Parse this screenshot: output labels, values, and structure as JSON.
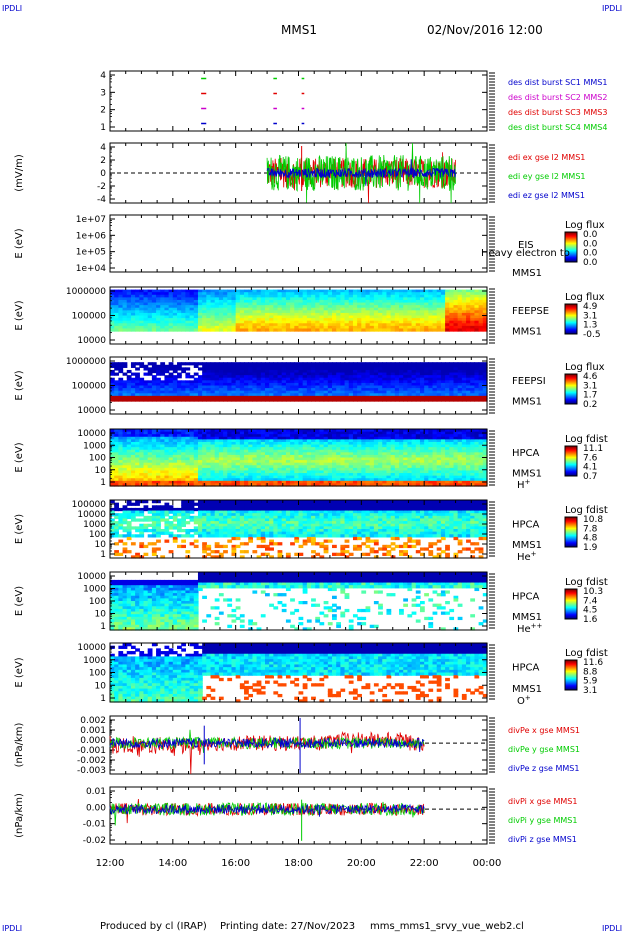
{
  "header": {
    "corner_left_top": "IPDLI",
    "corner_right_top": "IPDLI",
    "corner_left_bottom": "IPDLI",
    "corner_right_bottom": "IPDLI",
    "mission": "MMS1",
    "datetime": "02/Nov/2016 12:00"
  },
  "footer": {
    "produced_by": "Produced by cl (IRAP)",
    "printing_date": "Printing date: 27/Nov/2023",
    "file_name": "mms_mms1_srvy_vue_web2.cl"
  },
  "colors": {
    "red": "#e00000",
    "green": "#00cc00",
    "blue": "#0000cc",
    "magenta": "#cc00cc"
  },
  "chart_data": [
    {
      "type": "line",
      "panel": "burst",
      "x_ticks": [
        "12:00",
        "14:00",
        "16:00",
        "18:00",
        "20:00",
        "22:00",
        "00:00"
      ],
      "y_ticks": [
        "4",
        "3",
        "2",
        "1"
      ],
      "ylim": [
        0.5,
        4.5
      ],
      "series": [
        {
          "name": "des dist burst SC1 MMS1",
          "color": "#0000cc",
          "level": 1,
          "segments": [
            [
              14.9,
              15.0
            ],
            [
              17.2,
              17.25
            ],
            [
              18.1,
              18.12
            ]
          ]
        },
        {
          "name": "des dist burst SC2 MMS2",
          "color": "#cc00cc",
          "level": 2,
          "segments": [
            [
              14.9,
              15.0
            ],
            [
              17.2,
              17.25
            ],
            [
              18.1,
              18.12
            ]
          ]
        },
        {
          "name": "des dist burst SC3 MMS3",
          "color": "#e00000",
          "level": 3,
          "segments": [
            [
              14.9,
              15.0
            ],
            [
              17.2,
              17.25
            ],
            [
              18.1,
              18.12
            ]
          ]
        },
        {
          "name": "des dist burst SC4 MMS4",
          "color": "#00cc00",
          "level": 4,
          "segments": [
            [
              14.9,
              15.0
            ],
            [
              17.2,
              17.25
            ],
            [
              18.1,
              18.12
            ]
          ]
        }
      ]
    },
    {
      "type": "line",
      "panel": "electric_field",
      "ylabel": "(mV/m)",
      "y_ticks": [
        "4",
        "2",
        "0",
        "-2",
        "-4"
      ],
      "ylim": [
        -5,
        5
      ],
      "x_range_data": [
        17.0,
        23.0
      ],
      "series": [
        {
          "name": "edi ex gse l2 MMS1",
          "color": "#e00000",
          "amplitude": 2.5
        },
        {
          "name": "edi ey gse l2 MMS1",
          "color": "#00cc00",
          "amplitude": 3.0
        },
        {
          "name": "edi ez gse l2 MMS1",
          "color": "#0000cc",
          "amplitude": 0.8
        }
      ]
    },
    {
      "type": "heatmap",
      "panel": "EIS",
      "ylabel": "E (eV)",
      "y_ticks": [
        "1e+07",
        "1e+06",
        "1e+05",
        "1e+04"
      ],
      "labels": [
        "EIS",
        "MMS1"
      ],
      "overlay_text": "Heavy electron to",
      "colorbar_title": "Log flux",
      "colorbar_ticks": [
        "0.0",
        "0.0",
        "0.0",
        "0.0"
      ]
    },
    {
      "type": "heatmap",
      "panel": "FEEPSE",
      "ylabel": "E (eV)",
      "y_ticks": [
        "1000000",
        "100000",
        "10000"
      ],
      "labels": [
        "FEEPSE",
        "MMS1"
      ],
      "colorbar_title": "Log flux",
      "colorbar_ticks": [
        "4.9",
        "3.1",
        "1.3",
        "-0.5"
      ]
    },
    {
      "type": "heatmap",
      "panel": "FEEPSI",
      "ylabel": "E (eV)",
      "y_ticks": [
        "1000000",
        "100000",
        "10000"
      ],
      "labels": [
        "FEEPSI",
        "MMS1"
      ],
      "colorbar_title": "Log flux",
      "colorbar_ticks": [
        "4.6",
        "3.1",
        "1.7",
        "0.2"
      ]
    },
    {
      "type": "heatmap",
      "panel": "HPCA H+",
      "ylabel": "E (eV)",
      "y_ticks": [
        "10000",
        "1000",
        "100",
        "10",
        "1"
      ],
      "labels": [
        "HPCA",
        "MMS1"
      ],
      "species": "H",
      "species_charge": "+",
      "colorbar_title": "Log fdist",
      "colorbar_ticks": [
        "11.1",
        "7.6",
        "4.1",
        "0.7"
      ]
    },
    {
      "type": "heatmap",
      "panel": "HPCA He+",
      "ylabel": "E (eV)",
      "y_ticks": [
        "100000",
        "10000",
        "1000",
        "100",
        "10",
        "1"
      ],
      "labels": [
        "HPCA",
        "MMS1"
      ],
      "species": "He",
      "species_charge": "+",
      "colorbar_title": "Log fdist",
      "colorbar_ticks": [
        "10.8",
        "7.8",
        "4.8",
        "1.9"
      ]
    },
    {
      "type": "heatmap",
      "panel": "HPCA He++",
      "ylabel": "E (eV)",
      "y_ticks": [
        "10000",
        "1000",
        "100",
        "10",
        "1"
      ],
      "labels": [
        "HPCA",
        "MMS1"
      ],
      "species": "He",
      "species_charge": "++",
      "colorbar_title": "Log fdist",
      "colorbar_ticks": [
        "10.3",
        "7.4",
        "4.5",
        "1.6"
      ]
    },
    {
      "type": "heatmap",
      "panel": "HPCA O+",
      "ylabel": "E (eV)",
      "y_ticks": [
        "10000",
        "1000",
        "100",
        "10",
        "1"
      ],
      "labels": [
        "HPCA",
        "MMS1"
      ],
      "species": "O",
      "species_charge": "+",
      "colorbar_title": "Log fdist",
      "colorbar_ticks": [
        "11.6",
        "8.8",
        "5.9",
        "3.1"
      ]
    },
    {
      "type": "line",
      "panel": "divPe",
      "ylabel": "(nPa/km)",
      "y_ticks": [
        "0.002",
        "0.001",
        "0.000",
        "-0.001",
        "-0.002",
        "-0.003"
      ],
      "ylim": [
        -0.0032,
        0.0028
      ],
      "x_range_data": [
        12.0,
        22.0
      ],
      "series": [
        {
          "name": "divPe x gse MMS1",
          "color": "#e00000",
          "amplitude": 0.0008
        },
        {
          "name": "divPe y gse MMS1",
          "color": "#00cc00",
          "amplitude": 0.0006
        },
        {
          "name": "divPe z gse MMS1",
          "color": "#0000cc",
          "amplitude": 0.0005
        }
      ]
    },
    {
      "type": "line",
      "panel": "divPi",
      "ylabel": "(nPa/km)",
      "y_ticks": [
        "0.01",
        "0.00",
        "-0.01",
        "-0.02"
      ],
      "ylim": [
        -0.022,
        0.014
      ],
      "x_range_data": [
        12.0,
        22.0
      ],
      "series": [
        {
          "name": "divPi x gse MMS1",
          "color": "#e00000",
          "amplitude": 0.004
        },
        {
          "name": "divPi y gse MMS1",
          "color": "#00cc00",
          "amplitude": 0.004
        },
        {
          "name": "divPi z gse MMS1",
          "color": "#0000cc",
          "amplitude": 0.003
        }
      ]
    }
  ]
}
